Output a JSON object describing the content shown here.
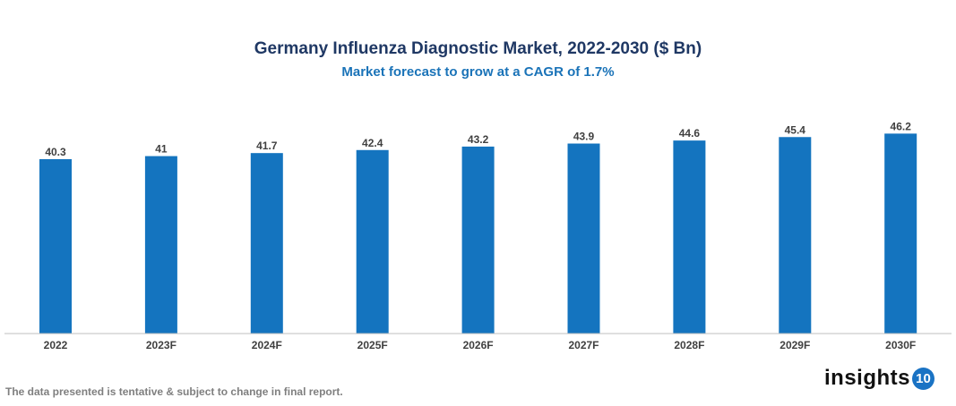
{
  "chart_data": {
    "type": "bar",
    "title": "Germany Influenza Diagnostic Market, 2022-2030 ($ Bn)",
    "subtitle": "Market forecast to grow at a CAGR of 1.7%",
    "categories": [
      "2022",
      "2023F",
      "2024F",
      "2025F",
      "2026F",
      "2027F",
      "2028F",
      "2029F",
      "2030F"
    ],
    "values": [
      40.3,
      41,
      41.7,
      42.4,
      43.2,
      43.9,
      44.6,
      45.4,
      46.2
    ],
    "xlabel": "",
    "ylabel": "",
    "ylim": [
      0,
      50
    ],
    "grid": false,
    "data_labels": true,
    "bar_color": "#1474bf"
  },
  "footer": {
    "note": "The data presented is tentative & subject to change in final report.",
    "logo_text": "insights",
    "logo_badge": "10"
  }
}
